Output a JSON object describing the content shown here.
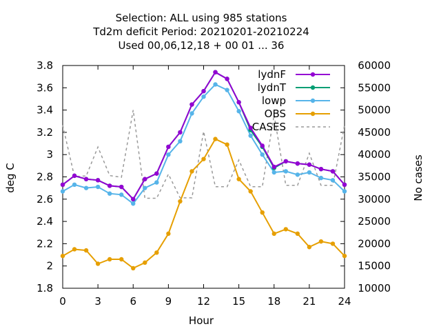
{
  "chart_data": {
    "type": "line",
    "title_lines": [
      "Selection: ALL using   985 stations",
      "Td2m deficit   Period: 20210201-20210224",
      "Used  00,06,12,18 + 00 01 ... 36"
    ],
    "xlabel": "Hour",
    "ylabel": "deg C",
    "y2label": "No cases",
    "xlim": [
      0,
      24
    ],
    "ylim": [
      1.8,
      3.8
    ],
    "y2lim": [
      10000,
      60000
    ],
    "xticks": [
      0,
      3,
      6,
      9,
      12,
      15,
      18,
      21,
      24
    ],
    "yticks": [
      "1.8",
      "2",
      "2.2",
      "2.4",
      "2.6",
      "2.8",
      "3",
      "3.2",
      "3.4",
      "3.6",
      "3.8"
    ],
    "y2ticks": [
      "10000",
      "15000",
      "20000",
      "25000",
      "30000",
      "35000",
      "40000",
      "45000",
      "50000",
      "55000",
      "60000"
    ],
    "legend_position": "top-right",
    "x": [
      0,
      1,
      2,
      3,
      4,
      5,
      6,
      7,
      8,
      9,
      10,
      11,
      12,
      13,
      14,
      15,
      16,
      17,
      18,
      19,
      20,
      21,
      22,
      23,
      24
    ],
    "series": [
      {
        "name": "lydnF",
        "color": "#9400d3",
        "axis": "y",
        "style": "solid-marker",
        "values": [
          2.73,
          2.81,
          2.78,
          2.77,
          2.72,
          2.71,
          2.6,
          2.78,
          2.83,
          3.07,
          3.2,
          3.45,
          3.57,
          3.74,
          3.68,
          3.47,
          3.24,
          3.08,
          2.89,
          2.94,
          2.92,
          2.91,
          2.87,
          2.85,
          2.73
        ]
      },
      {
        "name": "lydnT",
        "color": "#009e73",
        "axis": "y",
        "style": "solid-marker",
        "values": [
          2.73,
          2.81,
          2.78,
          2.77,
          2.72,
          2.71,
          2.6,
          2.78,
          2.83,
          3.07,
          3.2,
          3.45,
          3.57,
          3.74,
          3.68,
          3.47,
          3.22,
          3.07,
          2.88,
          2.94,
          2.92,
          2.91,
          2.87,
          2.85,
          2.73
        ]
      },
      {
        "name": "lowp",
        "color": "#56b4e9",
        "axis": "y",
        "style": "solid-marker",
        "values": [
          2.67,
          2.73,
          2.7,
          2.71,
          2.65,
          2.64,
          2.56,
          2.7,
          2.75,
          3.0,
          3.12,
          3.37,
          3.52,
          3.63,
          3.58,
          3.39,
          3.17,
          3.0,
          2.84,
          2.85,
          2.82,
          2.84,
          2.79,
          2.77,
          2.67
        ]
      },
      {
        "name": "OBS",
        "color": "#e69f00",
        "axis": "y",
        "style": "solid-marker",
        "values": [
          2.09,
          2.15,
          2.14,
          2.02,
          2.06,
          2.06,
          1.98,
          2.03,
          2.12,
          2.29,
          2.58,
          2.85,
          2.96,
          3.14,
          3.09,
          2.78,
          2.67,
          2.48,
          2.29,
          2.33,
          2.29,
          2.17,
          2.22,
          2.2,
          2.09
        ]
      },
      {
        "name": "CASES",
        "color": "#999999",
        "axis": "y2",
        "style": "dashed",
        "values": [
          46600,
          35100,
          35200,
          41700,
          35300,
          34900,
          50000,
          30200,
          30200,
          35600,
          30300,
          30300,
          45200,
          32800,
          32800,
          38800,
          32800,
          32800,
          48900,
          33100,
          33100,
          40300,
          33100,
          33100,
          46600
        ]
      }
    ]
  }
}
